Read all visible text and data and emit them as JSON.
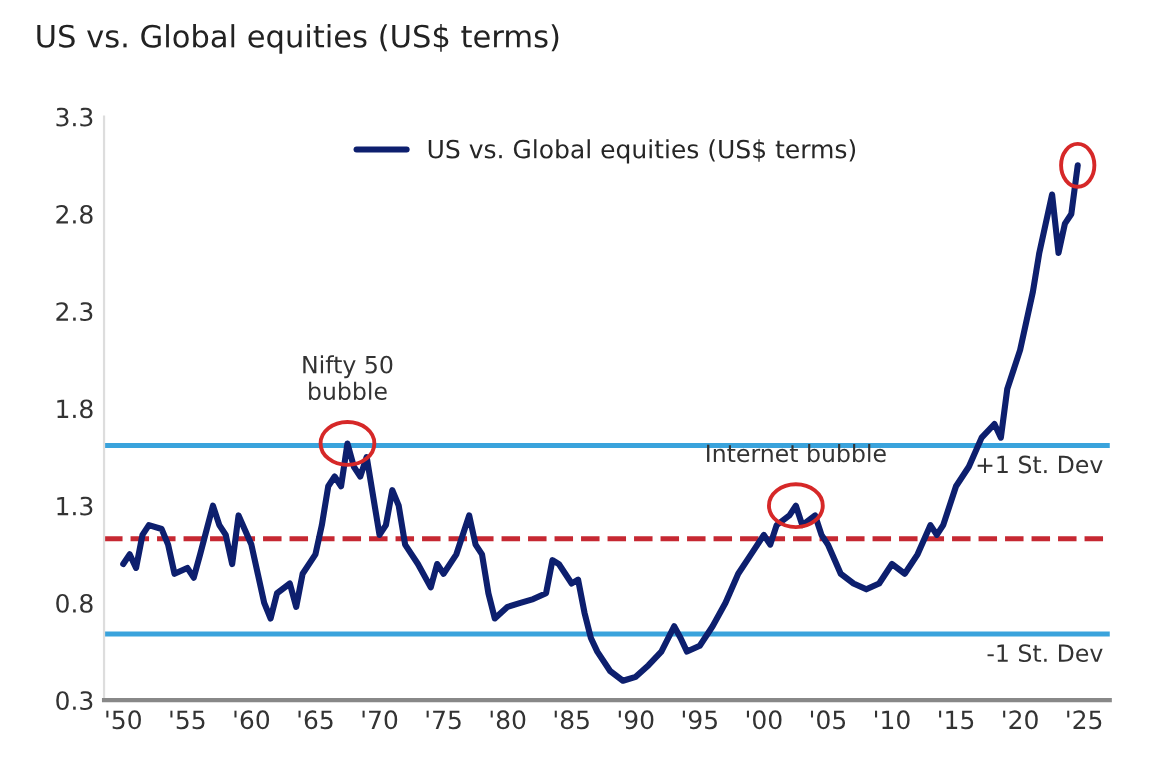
{
  "chart_data": {
    "type": "line",
    "title": "US vs. Global equities (US$ terms)",
    "x": [
      1950,
      1950.5,
      1951,
      1951.5,
      1952,
      1953,
      1953.5,
      1954,
      1955,
      1955.5,
      1956,
      1957,
      1957.5,
      1958,
      1958.5,
      1959,
      1960,
      1961,
      1961.5,
      1962,
      1963,
      1963.5,
      1964,
      1965,
      1965.5,
      1966,
      1966.5,
      1967,
      1967.5,
      1968,
      1968.5,
      1969,
      1969.5,
      1970,
      1970.5,
      1971,
      1971.5,
      1972,
      1973,
      1974,
      1974.5,
      1975,
      1976,
      1977,
      1977.5,
      1978,
      1978.5,
      1979,
      1980,
      1981,
      1982,
      1983,
      1983.5,
      1984,
      1985,
      1985.5,
      1986,
      1986.5,
      1987,
      1988,
      1989,
      1990,
      1991,
      1992,
      1993,
      1993.5,
      1994,
      1995,
      1996,
      1997,
      1998,
      1999,
      2000,
      2000.5,
      2001,
      2002,
      2002.5,
      2003,
      2004,
      2004.5,
      2005,
      2006,
      2007,
      2008,
      2009,
      2010,
      2011,
      2012,
      2013,
      2013.5,
      2014,
      2015,
      2016,
      2017,
      2018,
      2018.5,
      2019,
      2020,
      2021,
      2021.5,
      2022,
      2022.5,
      2023,
      2023.5,
      2024,
      2024.5
    ],
    "series": [
      {
        "name": "US vs. Global equities (US$ terms)",
        "color": "#0d1f6e",
        "values": [
          1.0,
          1.05,
          0.98,
          1.15,
          1.2,
          1.18,
          1.1,
          0.95,
          0.98,
          0.93,
          1.05,
          1.3,
          1.2,
          1.15,
          1.0,
          1.25,
          1.1,
          0.8,
          0.72,
          0.85,
          0.9,
          0.78,
          0.95,
          1.05,
          1.2,
          1.4,
          1.45,
          1.4,
          1.62,
          1.5,
          1.45,
          1.55,
          1.35,
          1.15,
          1.2,
          1.38,
          1.3,
          1.1,
          1.0,
          0.88,
          1.0,
          0.95,
          1.05,
          1.25,
          1.1,
          1.05,
          0.85,
          0.72,
          0.78,
          0.8,
          0.82,
          0.85,
          1.02,
          1.0,
          0.9,
          0.92,
          0.75,
          0.62,
          0.55,
          0.45,
          0.4,
          0.42,
          0.48,
          0.55,
          0.68,
          0.62,
          0.55,
          0.58,
          0.68,
          0.8,
          0.95,
          1.05,
          1.15,
          1.1,
          1.2,
          1.25,
          1.3,
          1.2,
          1.25,
          1.15,
          1.1,
          0.95,
          0.9,
          0.87,
          0.9,
          1.0,
          0.95,
          1.05,
          1.2,
          1.15,
          1.2,
          1.4,
          1.5,
          1.65,
          1.72,
          1.65,
          1.9,
          2.1,
          2.4,
          2.6,
          2.75,
          2.9,
          2.6,
          2.75,
          2.8,
          3.05
        ]
      }
    ],
    "xlim": [
      1948.5,
      2027
    ],
    "xticks": [
      {
        "value": 1950,
        "label": "'50"
      },
      {
        "value": 1955,
        "label": "'55"
      },
      {
        "value": 1960,
        "label": "'60"
      },
      {
        "value": 1965,
        "label": "'65"
      },
      {
        "value": 1970,
        "label": "'70"
      },
      {
        "value": 1975,
        "label": "'75"
      },
      {
        "value": 1980,
        "label": "'80"
      },
      {
        "value": 1985,
        "label": "'85"
      },
      {
        "value": 1990,
        "label": "'90"
      },
      {
        "value": 1995,
        "label": "'95"
      },
      {
        "value": 2000,
        "label": "'00"
      },
      {
        "value": 2005,
        "label": "'05"
      },
      {
        "value": 2010,
        "label": "'10"
      },
      {
        "value": 2015,
        "label": "'15"
      },
      {
        "value": 2020,
        "label": "'20"
      },
      {
        "value": 2025,
        "label": "'25"
      }
    ],
    "ylim": [
      0.3,
      3.3
    ],
    "yticks": [
      0.3,
      0.8,
      1.3,
      1.8,
      2.3,
      2.8,
      3.3
    ],
    "ref_lines": [
      {
        "axis": "y",
        "value": 1.61,
        "label": "+1 St. Dev",
        "color": "#3aa3dc",
        "line_style": "solid"
      },
      {
        "axis": "y",
        "value": 1.13,
        "color": "#c62832",
        "line_style": "dashed"
      },
      {
        "axis": "y",
        "value": 0.64,
        "label": "-1 St. Dev",
        "color": "#3aa3dc",
        "line_style": "solid"
      }
    ],
    "annotations": [
      {
        "text": "Nifty 50\nbubble",
        "x": 1967.5,
        "y": 1.62
      },
      {
        "text": "Internet bubble",
        "x": 2002.5,
        "y": 1.3
      }
    ],
    "grid": false,
    "legend": "top",
    "marker": "none",
    "line_style": "solid"
  }
}
